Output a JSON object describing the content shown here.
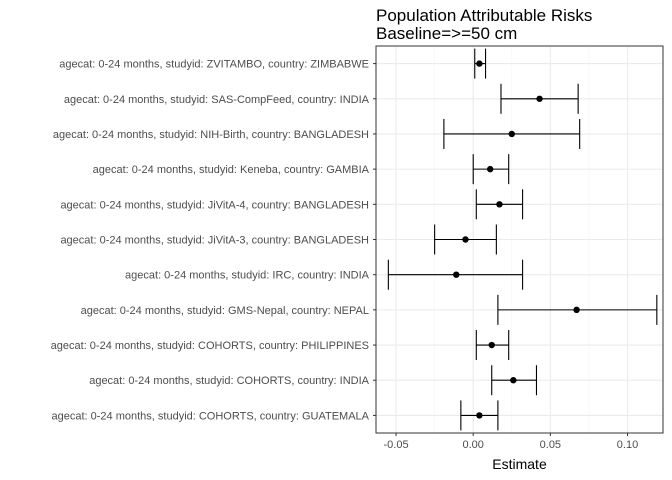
{
  "chart_data": {
    "type": "scatter",
    "subtype": "forest-plot-with-error-bars",
    "title": "Population Attributable Risks",
    "subtitle": "Baseline=>=50 cm",
    "xlabel": "Estimate",
    "ylabel": "",
    "xlim": [
      -0.063,
      0.123
    ],
    "xticks": [
      -0.05,
      0.0,
      0.05,
      0.1
    ],
    "xtick_labels": [
      "-0.05",
      "0.00",
      "0.05",
      "0.10"
    ],
    "grid": true,
    "legend": "none",
    "colors": {
      "panel_border": "#333333",
      "grid_major": "#ebebeb",
      "grid_minor": "#f5f5f5",
      "point": "#000000",
      "tick_text": "#4d4d4d"
    },
    "categories": [
      "agecat: 0-24 months, studyid: ZVITAMBO, country: ZIMBABWE",
      "agecat: 0-24 months, studyid: SAS-CompFeed, country: INDIA",
      "agecat: 0-24 months, studyid: NIH-Birth, country: BANGLADESH",
      "agecat: 0-24 months, studyid: Keneba, country: GAMBIA",
      "agecat: 0-24 months, studyid: JiVitA-4, country: BANGLADESH",
      "agecat: 0-24 months, studyid: JiVitA-3, country: BANGLADESH",
      "agecat: 0-24 months, studyid: IRC, country: INDIA",
      "agecat: 0-24 months, studyid: GMS-Nepal, country: NEPAL",
      "agecat: 0-24 months, studyid: COHORTS, country: PHILIPPINES",
      "agecat: 0-24 months, studyid: COHORTS, country: INDIA",
      "agecat: 0-24 months, studyid: COHORTS, country: GUATEMALA"
    ],
    "estimates": [
      0.004,
      0.043,
      0.025,
      0.011,
      0.017,
      -0.005,
      -0.011,
      0.067,
      0.012,
      0.026,
      0.004
    ],
    "lower": [
      0.001,
      0.018,
      -0.019,
      0.0,
      0.002,
      -0.025,
      -0.055,
      0.016,
      0.002,
      0.012,
      -0.008
    ],
    "upper": [
      0.008,
      0.068,
      0.069,
      0.023,
      0.032,
      0.015,
      0.032,
      0.119,
      0.023,
      0.041,
      0.016
    ]
  }
}
